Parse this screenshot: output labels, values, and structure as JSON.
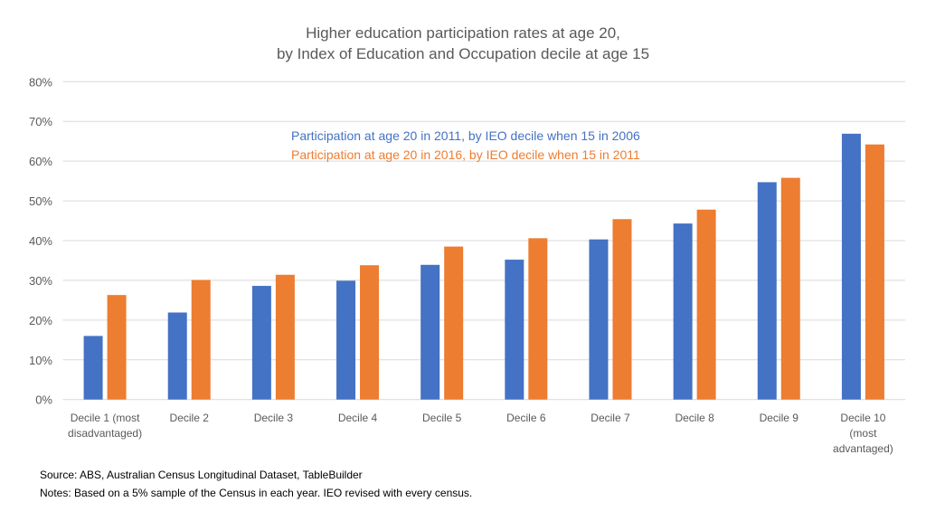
{
  "chart_data": {
    "type": "bar",
    "title": [
      "Higher education participation rates at age 20,",
      "by Index of Education and Occupation decile at age 15"
    ],
    "xlabel": "",
    "ylabel": "",
    "ylim": [
      0,
      80
    ],
    "yticks": [
      0,
      10,
      20,
      30,
      40,
      50,
      60,
      70,
      80
    ],
    "ytick_suffix": "%",
    "grid": true,
    "legend_placement": "top-center",
    "categories": [
      [
        "Decile 1 (most",
        "disadvantaged)"
      ],
      [
        "Decile 2"
      ],
      [
        "Decile 3"
      ],
      [
        "Decile 4"
      ],
      [
        "Decile 5"
      ],
      [
        "Decile 6"
      ],
      [
        "Decile 7"
      ],
      [
        "Decile 8"
      ],
      [
        "Decile 9"
      ],
      [
        "Decile 10",
        "(most",
        "advantaged)"
      ]
    ],
    "series": [
      {
        "name": "Participation at age 20 in 2011, by IEO decile when 15 in 2006",
        "color": "#4472C4",
        "values": [
          16.0,
          21.9,
          28.6,
          29.9,
          33.9,
          35.2,
          40.3,
          44.3,
          54.7,
          66.9
        ]
      },
      {
        "name": "Participation at age 20 in 2016, by IEO decile when 15 in 2011",
        "color": "#ED7D31",
        "values": [
          26.3,
          30.1,
          31.4,
          33.8,
          38.5,
          40.6,
          45.4,
          47.8,
          55.8,
          64.2
        ]
      }
    ]
  },
  "notes": {
    "source": "Source: ABS, Australian Census Longitudinal Dataset, TableBuilder",
    "notes": "Notes: Based on a 5% sample of the Census in each year. IEO revised with every census."
  }
}
